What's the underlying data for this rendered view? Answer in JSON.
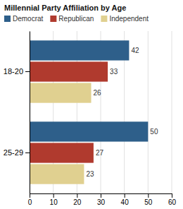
{
  "chart_data": {
    "type": "bar",
    "orientation": "horizontal",
    "title": "Millennial Party Affiliation by Age",
    "categories": [
      "18-20",
      "25-29"
    ],
    "series": [
      {
        "name": "Democrat",
        "color": "#2e5f8a",
        "values": [
          42,
          50
        ]
      },
      {
        "name": "Republican",
        "color": "#b03a2e",
        "values": [
          33,
          27
        ]
      },
      {
        "name": "Independent",
        "color": "#e0d090",
        "values": [
          26,
          23
        ]
      }
    ],
    "xlim": [
      0,
      60
    ],
    "xticks": [
      0,
      10,
      20,
      30,
      40,
      50,
      60
    ],
    "grid": true,
    "legend": "top-left",
    "data_labels": true
  }
}
